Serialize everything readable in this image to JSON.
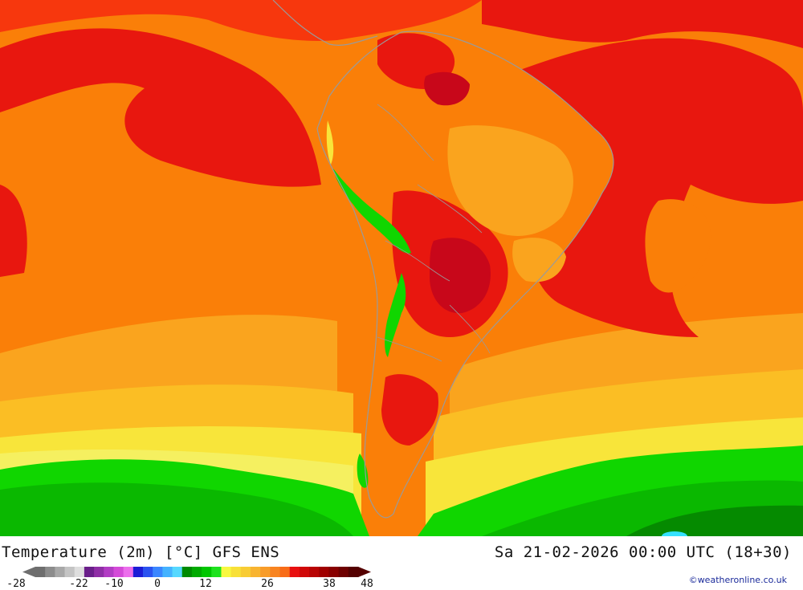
{
  "map": {
    "region": "South America",
    "colors": {
      "very_hot": "#e8170f",
      "hot": "#f7370d",
      "dark_hot": "#c8071a",
      "orange": "#fa7f08",
      "light_orange": "#faa41e",
      "yellow_orange": "#fbbe24",
      "yellow": "#f8e53a",
      "light_yellow": "#f5f060",
      "green_bright": "#10d600",
      "green": "#0ab800",
      "green_dark": "#058a00",
      "land_border": "#9a9a9a",
      "cyan_patch": "#35e1ff"
    }
  },
  "footer": {
    "title": "Temperature (2m) [°C] GFS ENS",
    "datetime": "Sa 21-02-2026 00:00 UTC (18+30)",
    "credit": "©weatheronline.co.uk"
  },
  "legend": {
    "ticks": [
      "-28",
      "-22",
      "-10",
      "0",
      "12",
      "26",
      "38",
      "48"
    ],
    "colors": [
      "#6e6e6e",
      "#8c8c8c",
      "#a8a8a8",
      "#c4c4c4",
      "#dedede",
      "#6a1f8a",
      "#8f2ea6",
      "#b23cc4",
      "#d44ad8",
      "#ec6eec",
      "#1c1cd6",
      "#2a52f0",
      "#3a86ff",
      "#44b2ff",
      "#56d8ff",
      "#008a00",
      "#00aa00",
      "#00c600",
      "#1ee21e",
      "#f8f840",
      "#f8e038",
      "#f8cc34",
      "#f8b430",
      "#f89c28",
      "#f88420",
      "#f86c18",
      "#e81010",
      "#d00808",
      "#b80404",
      "#a00000",
      "#880000",
      "#6e0000",
      "#540000"
    ]
  }
}
